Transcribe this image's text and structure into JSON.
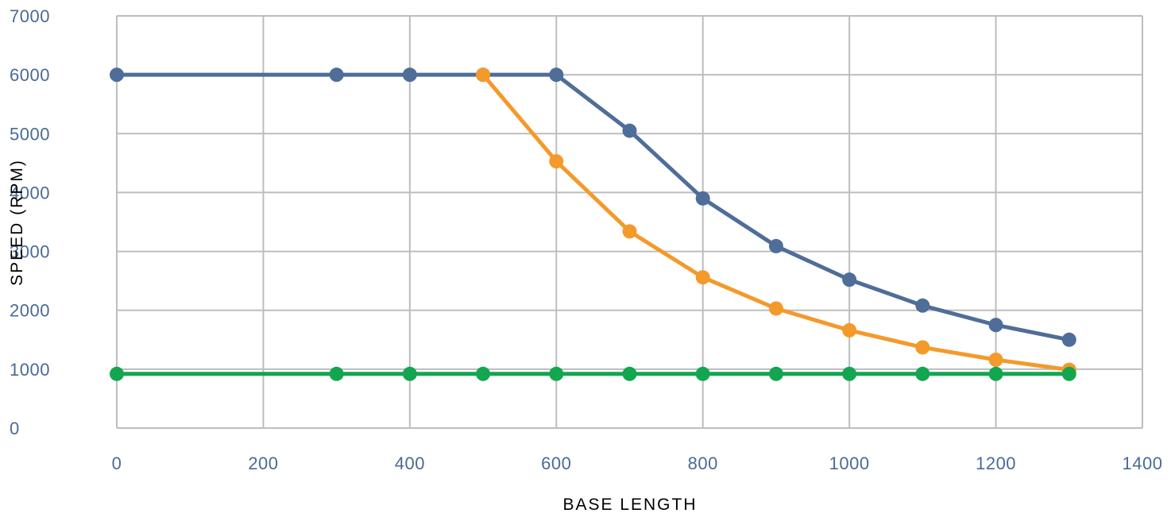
{
  "chart_data": {
    "type": "line",
    "title": "",
    "xlabel": "BASE LENGTH",
    "ylabel": "SPEED (RPM)",
    "xlim": [
      0,
      1400
    ],
    "ylim": [
      0,
      7000
    ],
    "xticks": [
      "0",
      "200",
      "400",
      "600",
      "800",
      "1000",
      "1200",
      "1400"
    ],
    "yticks": [
      "0",
      "1000",
      "2000",
      "3000",
      "4000",
      "5000",
      "6000",
      "7000"
    ],
    "grid": true,
    "legend": "none",
    "colors": {
      "axis_text": "#4a6a94",
      "grid": "#bdbdbd"
    },
    "series": [
      {
        "color": "#4f6d99",
        "points": [
          [
            0,
            6000
          ],
          [
            300,
            6000
          ],
          [
            400,
            6000
          ],
          [
            500,
            6000
          ],
          [
            600,
            6000
          ],
          [
            700,
            5050
          ],
          [
            800,
            3900
          ],
          [
            900,
            3090
          ],
          [
            1000,
            2520
          ],
          [
            1100,
            2080
          ],
          [
            1200,
            1750
          ],
          [
            1300,
            1500
          ]
        ]
      },
      {
        "color": "#f39a2b",
        "points": [
          [
            500,
            6000
          ],
          [
            600,
            4530
          ],
          [
            700,
            3340
          ],
          [
            800,
            2560
          ],
          [
            900,
            2030
          ],
          [
            1000,
            1660
          ],
          [
            1100,
            1370
          ],
          [
            1200,
            1160
          ],
          [
            1300,
            990
          ]
        ]
      },
      {
        "color": "#12a650",
        "points": [
          [
            0,
            920
          ],
          [
            300,
            920
          ],
          [
            400,
            920
          ],
          [
            500,
            920
          ],
          [
            600,
            920
          ],
          [
            700,
            920
          ],
          [
            800,
            920
          ],
          [
            900,
            920
          ],
          [
            1000,
            920
          ],
          [
            1100,
            920
          ],
          [
            1200,
            920
          ],
          [
            1300,
            920
          ]
        ]
      }
    ]
  }
}
